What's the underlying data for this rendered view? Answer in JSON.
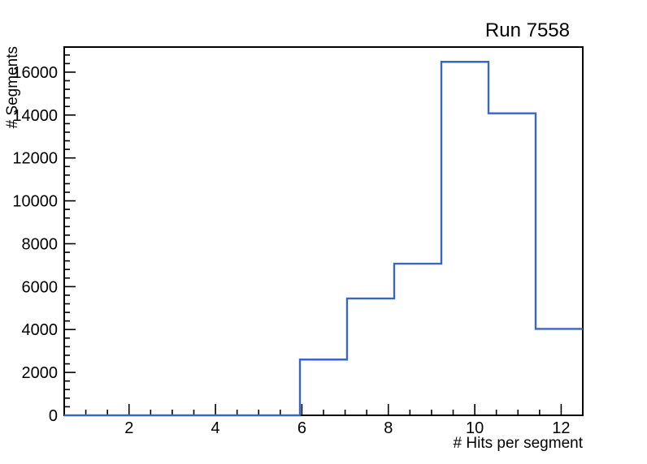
{
  "page": {
    "background": "#ffffff"
  },
  "chart_data": {
    "type": "bar",
    "style": "step-histogram-outline",
    "title": "Run 7558",
    "xlabel": "# Hits per segment",
    "ylabel": "# Segments",
    "xlim": [
      0.5,
      12.5
    ],
    "ylim": [
      0,
      17170
    ],
    "bin_edges": [
      0.5,
      1.591,
      2.682,
      3.773,
      4.864,
      5.955,
      7.045,
      8.136,
      9.227,
      10.318,
      11.409,
      12.5
    ],
    "counts": [
      0,
      0,
      0,
      0,
      0,
      2600,
      5450,
      7070,
      16480,
      14080,
      4030
    ],
    "x_major_ticks": [
      2,
      4,
      6,
      8,
      10,
      12
    ],
    "x_major_tick_labels": [
      "2",
      "4",
      "6",
      "8",
      "10",
      "12"
    ],
    "x_minor_step": 0.5,
    "y_major_ticks": [
      0,
      2000,
      4000,
      6000,
      8000,
      10000,
      12000,
      14000,
      16000
    ],
    "y_major_tick_labels": [
      "0",
      "2000",
      "4000",
      "6000",
      "8000",
      "10000",
      "12000",
      "14000",
      "16000"
    ],
    "y_minor_step": 400,
    "grid": false,
    "legend": null,
    "line_color": "#3a66c0",
    "frame_color": "#000000",
    "text_color": "#000000"
  }
}
